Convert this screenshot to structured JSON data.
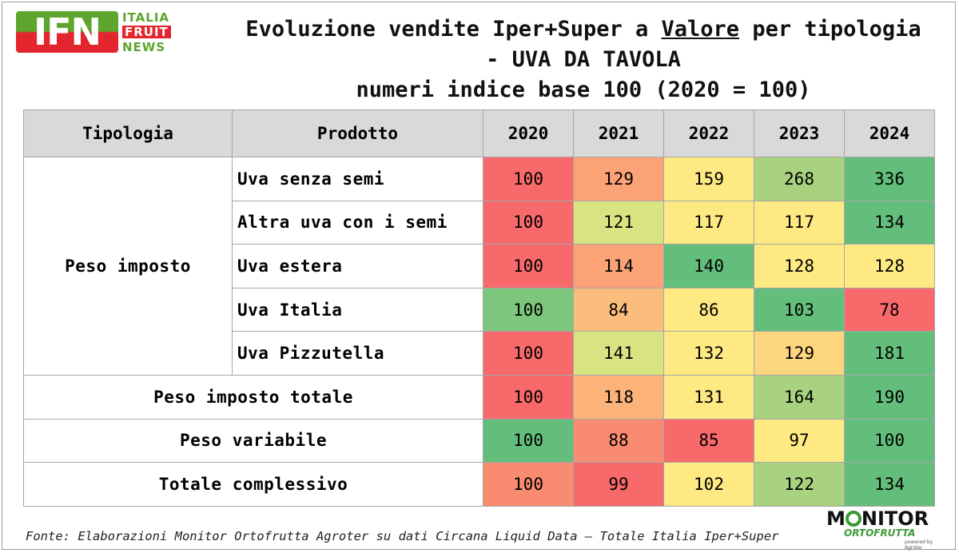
{
  "logo": {
    "ifn_text": "IFN",
    "word1": "ITALIA",
    "word2": "FRUIT",
    "word3": "NEWS"
  },
  "title": {
    "line1_pre": "Evoluzione vendite Iper+Super a ",
    "line1_underlined": "Valore",
    "line1_post": " per tipologia",
    "line2": "- UVA DA TAVOLA",
    "line3": "numeri indice base 100 (2020 = 100)"
  },
  "table": {
    "headers": [
      "Tipologia",
      "Prodotto",
      "2020",
      "2021",
      "2022",
      "2023",
      "2024"
    ],
    "group_label": "Peso imposto",
    "group_rows": [
      {
        "product": "Uva senza semi",
        "values": [
          "100",
          "129",
          "159",
          "268",
          "336"
        ],
        "colors": [
          "#f8696b",
          "#fba276",
          "#fee983",
          "#a8d27f",
          "#63be7b"
        ]
      },
      {
        "product": "Altra uva con i semi",
        "values": [
          "100",
          "121",
          "117",
          "117",
          "134"
        ],
        "colors": [
          "#f8696b",
          "#d8e382",
          "#fee983",
          "#fee983",
          "#63be7b"
        ]
      },
      {
        "product": "Uva estera",
        "values": [
          "100",
          "114",
          "140",
          "128",
          "128"
        ],
        "colors": [
          "#f8696b",
          "#fba276",
          "#63be7b",
          "#fee983",
          "#fee983"
        ]
      },
      {
        "product": "Uva Italia",
        "values": [
          "100",
          "84",
          "86",
          "103",
          "78"
        ],
        "colors": [
          "#7cc67d",
          "#fbbd7b",
          "#fee983",
          "#63be7b",
          "#f8696b"
        ]
      },
      {
        "product": "Uva Pizzutella",
        "values": [
          "100",
          "141",
          "132",
          "129",
          "181"
        ],
        "colors": [
          "#f8696b",
          "#d8e382",
          "#fee983",
          "#fdd57f",
          "#63be7b"
        ]
      }
    ],
    "total_rows": [
      {
        "label": "Peso imposto totale",
        "values": [
          "100",
          "118",
          "131",
          "164",
          "190"
        ],
        "colors": [
          "#f8696b",
          "#fbb379",
          "#fee983",
          "#a8d27f",
          "#63be7b"
        ]
      },
      {
        "label": "Peso variabile",
        "values": [
          "100",
          "88",
          "85",
          "97",
          "100"
        ],
        "colors": [
          "#63be7b",
          "#f98b71",
          "#f8696b",
          "#fee983",
          "#63be7b"
        ]
      },
      {
        "label": "Totale complessivo",
        "values": [
          "100",
          "99",
          "102",
          "122",
          "134"
        ],
        "colors": [
          "#f98b71",
          "#f8696b",
          "#fee983",
          "#a8d27f",
          "#63be7b"
        ]
      }
    ]
  },
  "footer": {
    "source": "Fonte: Elaborazioni Monitor Ortofrutta Agroter su dati Circana Liquid Data – Totale Italia Iper+Super"
  },
  "monitor_logo": {
    "top_a": "M",
    "top_b": "NITOR",
    "bottom": "ORTOFRUTTA",
    "sub": "powered by Agroter"
  }
}
